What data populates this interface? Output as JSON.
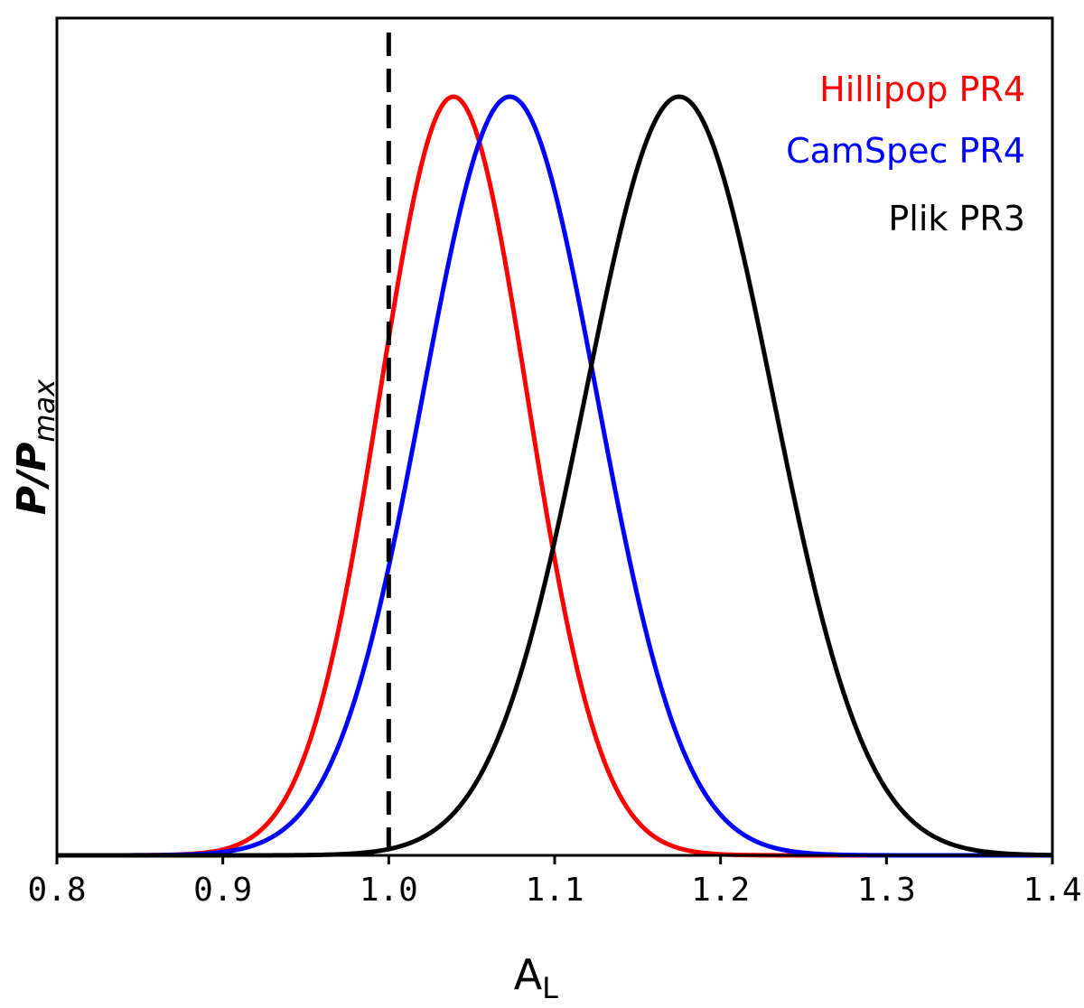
{
  "chart_data": {
    "type": "line",
    "xlabel": "A",
    "xlabel_sub": "L",
    "ylabel": "P/P",
    "ylabel_sub": "max",
    "xlim": [
      0.8,
      1.4
    ],
    "ylim": [
      0,
      1.0
    ],
    "xticks": [
      "0.8",
      "0.9",
      "1.0",
      "1.1",
      "1.2",
      "1.3",
      "1.4"
    ],
    "yticks_visible": false,
    "grid": false,
    "legend_position": "top-right",
    "reference_line": {
      "x": 1.0,
      "style": "dashed",
      "color": "#000000"
    },
    "series": [
      {
        "name": "Hillipop PR4",
        "color": "#ff0000",
        "mean": 1.039,
        "sigma": 0.0445
      },
      {
        "name": "CamSpec PR4",
        "color": "#0000ff",
        "mean": 1.073,
        "sigma": 0.0525
      },
      {
        "name": "Plik PR3",
        "color": "#000000",
        "mean": 1.175,
        "sigma": 0.0565
      }
    ]
  }
}
